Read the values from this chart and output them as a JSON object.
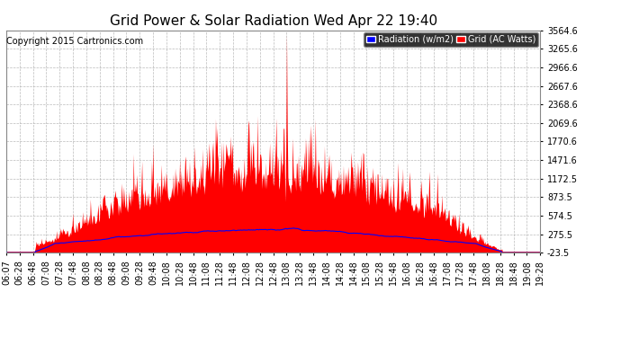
{
  "title": "Grid Power & Solar Radiation Wed Apr 22 19:40",
  "copyright": "Copyright 2015 Cartronics.com",
  "background_color": "#ffffff",
  "plot_bg_color": "#ffffff",
  "grid_color": "#aaaaaa",
  "ytick_labels": [
    "-23.5",
    "275.5",
    "574.5",
    "873.5",
    "1172.5",
    "1471.6",
    "1770.6",
    "2069.6",
    "2368.6",
    "2667.6",
    "2966.6",
    "3265.6",
    "3564.6"
  ],
  "ytick_values": [
    -23.5,
    275.5,
    574.5,
    873.5,
    1172.5,
    1471.6,
    1770.6,
    2069.6,
    2368.6,
    2667.6,
    2966.6,
    3265.6,
    3564.6
  ],
  "ymin": -23.5,
  "ymax": 3564.6,
  "xtick_labels": [
    "06:07",
    "06:28",
    "06:48",
    "07:08",
    "07:28",
    "07:48",
    "08:08",
    "08:28",
    "08:48",
    "09:08",
    "09:28",
    "09:48",
    "10:08",
    "10:28",
    "10:48",
    "11:08",
    "11:28",
    "11:48",
    "12:08",
    "12:28",
    "12:48",
    "13:08",
    "13:28",
    "13:48",
    "14:08",
    "14:28",
    "14:48",
    "15:08",
    "15:28",
    "15:48",
    "16:08",
    "16:28",
    "16:48",
    "17:08",
    "17:28",
    "17:48",
    "18:08",
    "18:28",
    "18:48",
    "19:08",
    "19:28"
  ],
  "red_color": "#ff0000",
  "blue_color": "#0000ff",
  "title_fontsize": 11,
  "copyright_fontsize": 7,
  "tick_fontsize": 7,
  "legend_fontsize": 7
}
